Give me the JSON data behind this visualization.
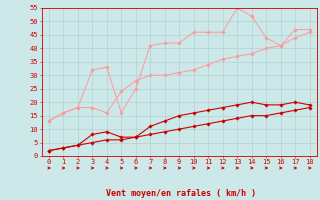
{
  "x": [
    0,
    1,
    2,
    3,
    4,
    5,
    6,
    7,
    8,
    9,
    10,
    11,
    12,
    13,
    14,
    15,
    16,
    17,
    18
  ],
  "xlabel": "Vent moyen/en rafales ( km/h )",
  "ylim": [
    0,
    55
  ],
  "yticks": [
    0,
    5,
    10,
    15,
    20,
    25,
    30,
    35,
    40,
    45,
    50,
    55
  ],
  "xlim": [
    -0.5,
    18.5
  ],
  "bg_color": "#cce8e8",
  "grid_color": "#aacccc",
  "line_color_dark": "#cc0000",
  "line_color_light": "#ff9999",
  "arrow_color": "#cc0000",
  "series1_light": [
    13,
    16,
    18,
    32,
    33,
    16,
    25,
    41,
    42,
    42,
    46,
    46,
    46,
    55,
    52,
    44,
    41,
    47,
    47
  ],
  "series2_light": [
    13,
    16,
    18,
    18,
    16,
    24,
    28,
    30,
    30,
    31,
    32,
    34,
    36,
    37,
    38,
    40,
    41,
    44,
    46
  ],
  "series3_dark": [
    2,
    3,
    4,
    8,
    9,
    7,
    7,
    11,
    13,
    15,
    16,
    17,
    18,
    19,
    20,
    19,
    19,
    20,
    19
  ],
  "series4_dark": [
    2,
    3,
    4,
    5,
    6,
    6,
    7,
    8,
    9,
    10,
    11,
    12,
    13,
    14,
    15,
    15,
    16,
    17,
    18
  ]
}
